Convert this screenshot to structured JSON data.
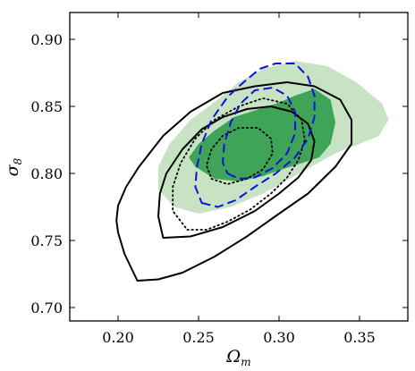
{
  "chart_data": {
    "type": "contour",
    "xlabel": {
      "symbol": "Ω",
      "sub": "m"
    },
    "ylabel": {
      "symbol": "σ",
      "sub": "8"
    },
    "xlim": [
      0.17,
      0.38
    ],
    "ylim": [
      0.69,
      0.92
    ],
    "xticks": [
      0.2,
      0.25,
      0.3,
      0.35
    ],
    "xtick_labels": [
      "0.20",
      "0.25",
      "0.30",
      "0.35"
    ],
    "yticks": [
      0.7,
      0.75,
      0.8,
      0.85,
      0.9
    ],
    "ytick_labels": [
      "0.70",
      "0.75",
      "0.80",
      "0.85",
      "0.90"
    ],
    "grid": false,
    "legend": null,
    "colors": {
      "green_outer": "#c8e3c3",
      "green_inner": "#3fa457",
      "black": "#000000",
      "blue": "#0a14d9"
    },
    "series": [
      {
        "style": "filled",
        "color": "green_outer",
        "points": [
          [
            0.235,
            0.775
          ],
          [
            0.25,
            0.77
          ],
          [
            0.27,
            0.775
          ],
          [
            0.29,
            0.785
          ],
          [
            0.305,
            0.795
          ],
          [
            0.32,
            0.805
          ],
          [
            0.335,
            0.815
          ],
          [
            0.35,
            0.822
          ],
          [
            0.362,
            0.828
          ],
          [
            0.368,
            0.84
          ],
          [
            0.364,
            0.852
          ],
          [
            0.348,
            0.868
          ],
          [
            0.33,
            0.88
          ],
          [
            0.31,
            0.884
          ],
          [
            0.29,
            0.878
          ],
          [
            0.275,
            0.868
          ],
          [
            0.262,
            0.855
          ],
          [
            0.245,
            0.84
          ],
          [
            0.232,
            0.822
          ],
          [
            0.225,
            0.805
          ],
          [
            0.225,
            0.788
          ]
        ]
      },
      {
        "style": "filled",
        "color": "green_inner",
        "points": [
          [
            0.248,
            0.805
          ],
          [
            0.26,
            0.796
          ],
          [
            0.275,
            0.794
          ],
          [
            0.29,
            0.798
          ],
          [
            0.302,
            0.803
          ],
          [
            0.315,
            0.808
          ],
          [
            0.325,
            0.812
          ],
          [
            0.332,
            0.822
          ],
          [
            0.335,
            0.838
          ],
          [
            0.332,
            0.855
          ],
          [
            0.322,
            0.863
          ],
          [
            0.31,
            0.858
          ],
          [
            0.298,
            0.852
          ],
          [
            0.285,
            0.847
          ],
          [
            0.272,
            0.842
          ],
          [
            0.26,
            0.832
          ],
          [
            0.25,
            0.822
          ],
          [
            0.244,
            0.812
          ]
        ]
      },
      {
        "style": "solid",
        "color": "black",
        "points": [
          [
            0.212,
            0.72
          ],
          [
            0.225,
            0.721
          ],
          [
            0.24,
            0.726
          ],
          [
            0.26,
            0.738
          ],
          [
            0.28,
            0.753
          ],
          [
            0.3,
            0.77
          ],
          [
            0.318,
            0.785
          ],
          [
            0.335,
            0.805
          ],
          [
            0.345,
            0.822
          ],
          [
            0.345,
            0.84
          ],
          [
            0.338,
            0.855
          ],
          [
            0.322,
            0.865
          ],
          [
            0.305,
            0.868
          ],
          [
            0.285,
            0.865
          ],
          [
            0.265,
            0.86
          ],
          [
            0.245,
            0.846
          ],
          [
            0.228,
            0.828
          ],
          [
            0.213,
            0.805
          ],
          [
            0.205,
            0.79
          ],
          [
            0.2,
            0.776
          ],
          [
            0.199,
            0.765
          ],
          [
            0.2,
            0.756
          ],
          [
            0.204,
            0.74
          ]
        ]
      },
      {
        "style": "solid",
        "color": "black",
        "points": [
          [
            0.228,
            0.752
          ],
          [
            0.245,
            0.753
          ],
          [
            0.265,
            0.76
          ],
          [
            0.285,
            0.772
          ],
          [
            0.3,
            0.785
          ],
          [
            0.312,
            0.797
          ],
          [
            0.32,
            0.81
          ],
          [
            0.322,
            0.824
          ],
          [
            0.318,
            0.837
          ],
          [
            0.308,
            0.846
          ],
          [
            0.295,
            0.85
          ],
          [
            0.28,
            0.848
          ],
          [
            0.265,
            0.842
          ],
          [
            0.252,
            0.833
          ],
          [
            0.24,
            0.818
          ],
          [
            0.23,
            0.8
          ],
          [
            0.226,
            0.785
          ],
          [
            0.225,
            0.768
          ]
        ]
      },
      {
        "style": "dotted",
        "color": "black",
        "points": [
          [
            0.243,
            0.758
          ],
          [
            0.255,
            0.758
          ],
          [
            0.268,
            0.764
          ],
          [
            0.282,
            0.773
          ],
          [
            0.295,
            0.785
          ],
          [
            0.305,
            0.797
          ],
          [
            0.312,
            0.81
          ],
          [
            0.316,
            0.825
          ],
          [
            0.314,
            0.84
          ],
          [
            0.305,
            0.852
          ],
          [
            0.29,
            0.856
          ],
          [
            0.275,
            0.85
          ],
          [
            0.26,
            0.84
          ],
          [
            0.248,
            0.826
          ],
          [
            0.239,
            0.808
          ],
          [
            0.234,
            0.79
          ],
          [
            0.234,
            0.772
          ]
        ]
      },
      {
        "style": "dotted",
        "color": "black",
        "points": [
          [
            0.258,
            0.796
          ],
          [
            0.268,
            0.792
          ],
          [
            0.28,
            0.796
          ],
          [
            0.29,
            0.803
          ],
          [
            0.296,
            0.815
          ],
          [
            0.295,
            0.826
          ],
          [
            0.287,
            0.834
          ],
          [
            0.275,
            0.834
          ],
          [
            0.265,
            0.828
          ],
          [
            0.258,
            0.818
          ],
          [
            0.255,
            0.806
          ]
        ]
      },
      {
        "style": "dashed",
        "color": "blue",
        "points": [
          [
            0.252,
            0.778
          ],
          [
            0.262,
            0.775
          ],
          [
            0.273,
            0.78
          ],
          [
            0.285,
            0.79
          ],
          [
            0.298,
            0.8
          ],
          [
            0.31,
            0.812
          ],
          [
            0.318,
            0.826
          ],
          [
            0.322,
            0.842
          ],
          [
            0.322,
            0.858
          ],
          [
            0.318,
            0.872
          ],
          [
            0.31,
            0.882
          ],
          [
            0.298,
            0.882
          ],
          [
            0.288,
            0.878
          ],
          [
            0.278,
            0.868
          ],
          [
            0.268,
            0.857
          ],
          [
            0.258,
            0.84
          ],
          [
            0.252,
            0.822
          ],
          [
            0.249,
            0.805
          ],
          [
            0.248,
            0.79
          ]
        ]
      },
      {
        "style": "dashed",
        "color": "blue",
        "points": [
          [
            0.268,
            0.8
          ],
          [
            0.275,
            0.796
          ],
          [
            0.285,
            0.797
          ],
          [
            0.296,
            0.804
          ],
          [
            0.305,
            0.815
          ],
          [
            0.31,
            0.83
          ],
          [
            0.31,
            0.846
          ],
          [
            0.305,
            0.858
          ],
          [
            0.296,
            0.864
          ],
          [
            0.285,
            0.862
          ],
          [
            0.276,
            0.852
          ],
          [
            0.27,
            0.838
          ],
          [
            0.266,
            0.822
          ],
          [
            0.265,
            0.808
          ]
        ]
      }
    ]
  }
}
